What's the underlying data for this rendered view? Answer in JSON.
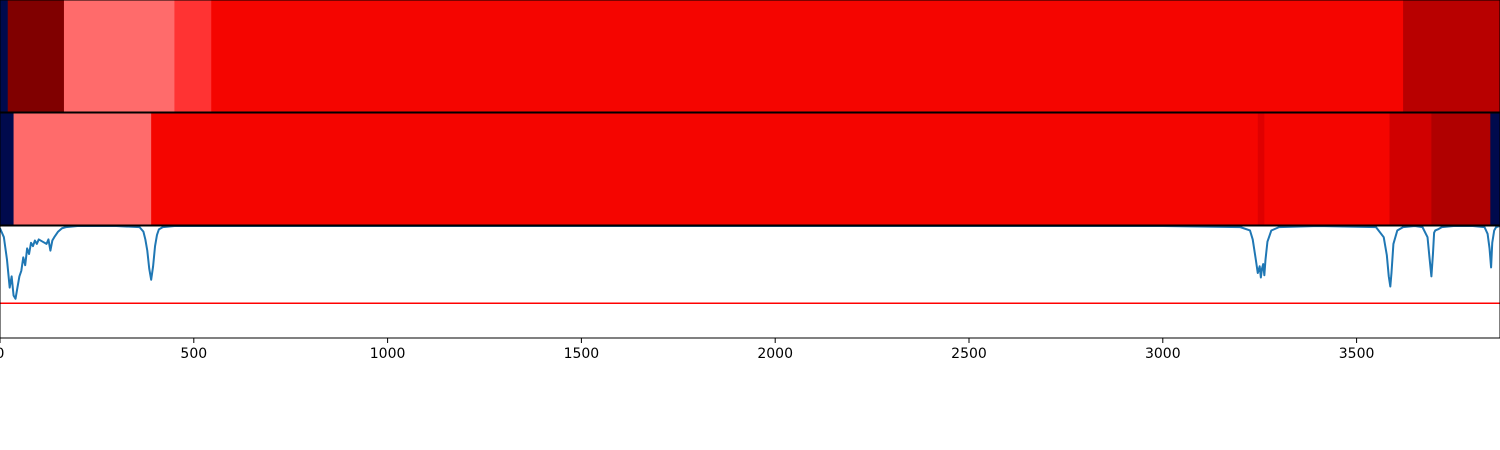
{
  "chart_data": [
    {
      "type": "heatmap",
      "row": "top",
      "colors": {
        "very_low": "#000a4d",
        "dark": "#800000",
        "light": "#ff6b6b",
        "medium": "#ff3333",
        "bright": "#f50500",
        "deep": "#b80000"
      },
      "segments": [
        {
          "x0": 0,
          "x1": 20,
          "color": "#000a4d"
        },
        {
          "x0": 20,
          "x1": 165,
          "color": "#800000"
        },
        {
          "x0": 165,
          "x1": 450,
          "color": "#ff6b6b"
        },
        {
          "x0": 450,
          "x1": 545,
          "color": "#ff3333"
        },
        {
          "x0": 545,
          "x1": 3620,
          "color": "#f50500"
        },
        {
          "x0": 3620,
          "x1": 3870,
          "color": "#b80000"
        }
      ]
    },
    {
      "type": "heatmap",
      "row": "middle",
      "segments": [
        {
          "x0": 0,
          "x1": 35,
          "color": "#000a4d"
        },
        {
          "x0": 35,
          "x1": 390,
          "color": "#ff6b6b"
        },
        {
          "x0": 390,
          "x1": 3245,
          "color": "#f50500"
        },
        {
          "x0": 3245,
          "x1": 3262,
          "color": "#e00000"
        },
        {
          "x0": 3262,
          "x1": 3585,
          "color": "#f50500"
        },
        {
          "x0": 3585,
          "x1": 3693,
          "color": "#d00000"
        },
        {
          "x0": 3693,
          "x1": 3845,
          "color": "#b00000"
        },
        {
          "x0": 3845,
          "x1": 3870,
          "color": "#000a4d"
        }
      ]
    },
    {
      "type": "line",
      "ylim": [
        0,
        1
      ],
      "xlim": [
        0,
        3870
      ],
      "xticks": [
        0,
        500,
        1000,
        1500,
        2000,
        2500,
        3000,
        3500
      ],
      "xtick_labels": [
        "0",
        "500",
        "1000",
        "1500",
        "2000",
        "2500",
        "3000",
        "3500"
      ],
      "threshold": 0.31,
      "threshold_color": "#ff0000",
      "line_color": "#1f77b4",
      "series": [
        {
          "x": [
            0,
            10,
            18,
            25,
            30,
            35,
            40,
            45,
            50,
            55,
            60,
            65,
            70,
            75,
            80,
            85,
            90,
            95,
            100,
            110,
            120,
            125,
            130,
            135,
            140,
            150,
            160,
            170,
            200,
            300,
            360,
            370,
            375,
            380,
            385,
            390,
            395,
            400,
            405,
            410,
            420,
            450,
            600,
            1000,
            2000,
            3000,
            3200,
            3225,
            3232,
            3240,
            3245,
            3250,
            3253,
            3256,
            3259,
            3262,
            3265,
            3270,
            3280,
            3300,
            3400,
            3550,
            3570,
            3578,
            3583,
            3587,
            3590,
            3595,
            3605,
            3620,
            3650,
            3670,
            3683,
            3688,
            3693,
            3697,
            3700,
            3703,
            3710,
            3720,
            3750,
            3800,
            3830,
            3838,
            3843,
            3847,
            3850,
            3855,
            3860,
            3870
          ],
          "y": [
            0.98,
            0.9,
            0.7,
            0.45,
            0.55,
            0.38,
            0.35,
            0.45,
            0.55,
            0.6,
            0.72,
            0.65,
            0.8,
            0.75,
            0.85,
            0.82,
            0.87,
            0.84,
            0.88,
            0.86,
            0.84,
            0.88,
            0.78,
            0.87,
            0.9,
            0.95,
            0.98,
            0.99,
            1.0,
            1.0,
            0.99,
            0.95,
            0.88,
            0.78,
            0.62,
            0.52,
            0.64,
            0.82,
            0.92,
            0.97,
            0.99,
            1.0,
            1.0,
            1.0,
            1.0,
            1.0,
            0.99,
            0.96,
            0.88,
            0.7,
            0.58,
            0.64,
            0.54,
            0.62,
            0.66,
            0.56,
            0.7,
            0.86,
            0.96,
            0.99,
            1.0,
            0.99,
            0.9,
            0.74,
            0.55,
            0.46,
            0.58,
            0.84,
            0.96,
            0.99,
            1.0,
            0.99,
            0.9,
            0.72,
            0.55,
            0.75,
            0.94,
            0.96,
            0.97,
            0.99,
            1.0,
            1.0,
            0.99,
            0.93,
            0.8,
            0.63,
            0.85,
            0.96,
            0.99,
            1.0
          ]
        }
      ]
    }
  ]
}
